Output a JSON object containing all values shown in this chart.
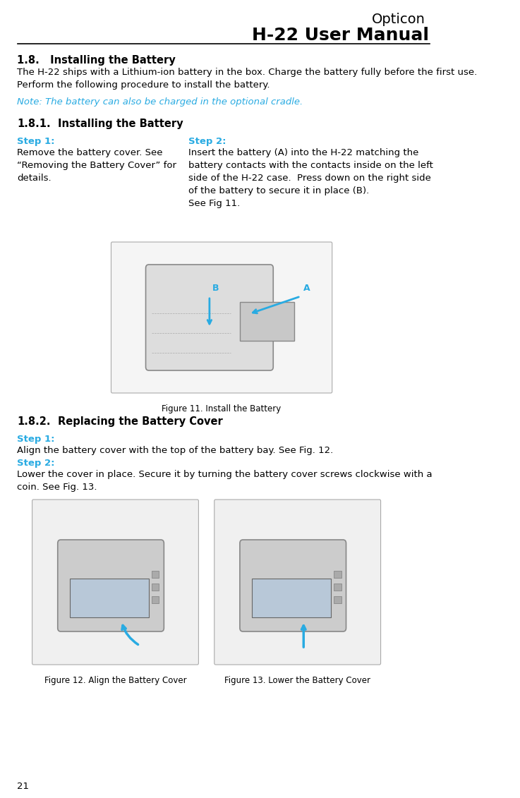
{
  "page_number": "21",
  "header_opticon": "Opticon",
  "header_manual": "H-22 User Manual",
  "section_title": "1.8.   Installing the Battery",
  "section_body": "The H-22 ships with a Lithium-ion battery in the box. Charge the battery fully before the first use.\nPerform the following procedure to install the battery.",
  "note_text": "Note: The battery can also be charged in the optional cradle.",
  "subsection_181_title": "1.8.1.",
  "subsection_181_label": "Installing the Battery",
  "step1_label_181": "Step 1:",
  "step1_text_181": "Remove the battery cover. See\n“Removing the Battery Cover” for\ndetails.",
  "step2_label_181": "Step 2:",
  "step2_text_181": "Insert the battery (A) into the H-22 matching the\nbattery contacts with the contacts inside on the left\nside of the H-22 case.  Press down on the right side\nof the battery to secure it in place (B).\nSee Fig 11.",
  "fig11_caption": "Figure 11. Install the Battery",
  "subsection_182_title": "1.8.2.",
  "subsection_182_label": "Replacing the Battery Cover",
  "step1_label_182": "Step 1:",
  "step1_text_182": "Align the battery cover with the top of the battery bay. See Fig. 12.",
  "step2_label_182": "Step 2:",
  "step2_text_182": "Lower the cover in place. Secure it by turning the battery cover screws clockwise with a\ncoin. See Fig. 13.",
  "fig12_caption": "Figure 12. Align the Battery Cover",
  "fig13_caption": "Figure 13. Lower the Battery Cover",
  "accent_color": "#29ABE2",
  "text_color": "#000000",
  "bg_color": "#ffffff",
  "header_line_color": "#000000",
  "body_fontsize": 9.5,
  "step_fontsize": 9.5,
  "note_fontsize": 9.5,
  "title_fontsize": 10.5,
  "header_fontsize_opticon": 14,
  "header_fontsize_manual": 18
}
